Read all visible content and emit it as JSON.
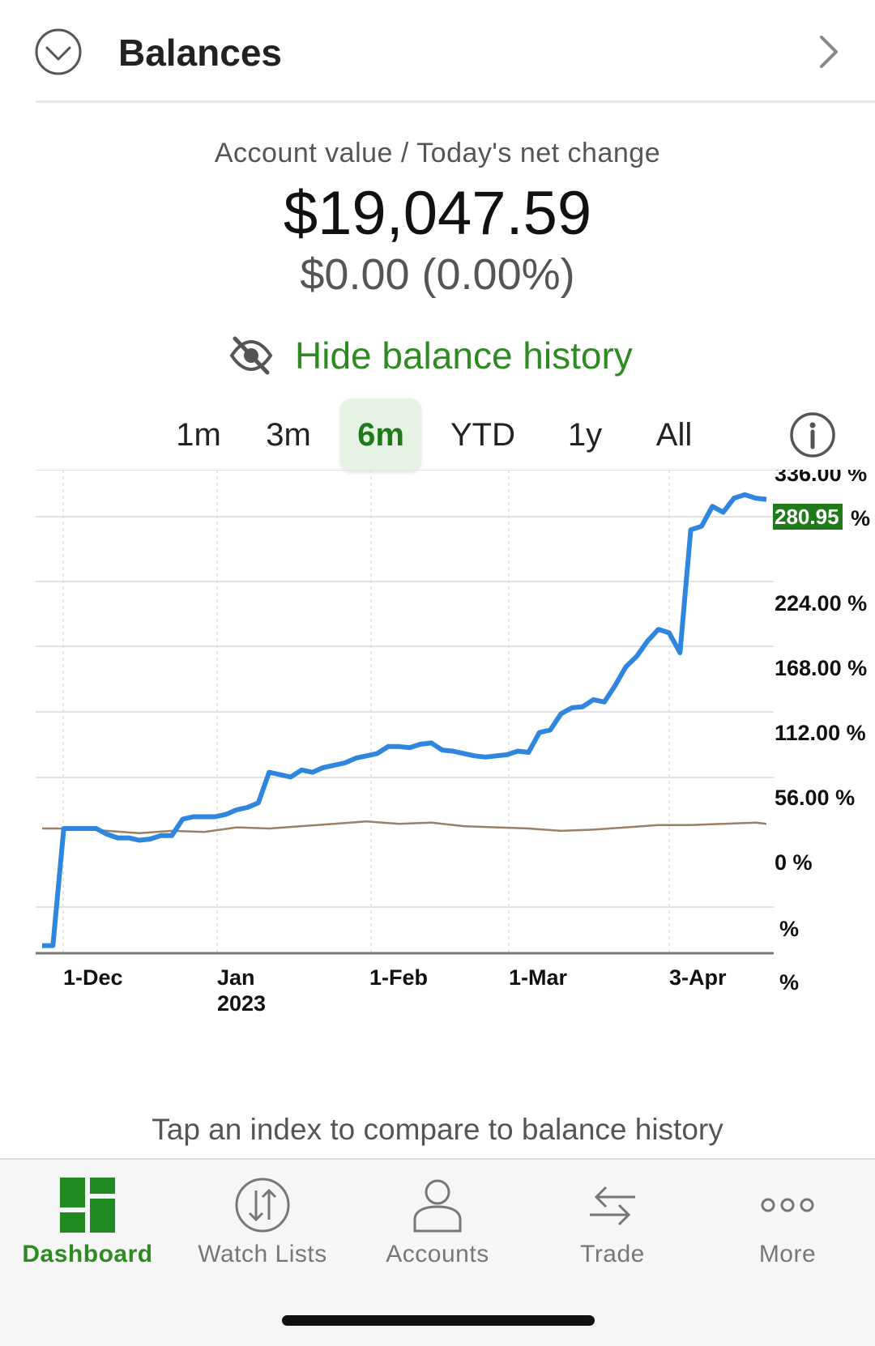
{
  "header": {
    "title": "Balances"
  },
  "account": {
    "label": "Account value / Today's net change",
    "value": "$19,047.59",
    "change": "$0.00 (0.00%)"
  },
  "history_toggle": {
    "label": "Hide balance history"
  },
  "ranges": [
    {
      "label": "1m",
      "active": false
    },
    {
      "label": "3m",
      "active": false
    },
    {
      "label": "6m",
      "active": true
    },
    {
      "label": "YTD",
      "active": false
    },
    {
      "label": "1y",
      "active": false
    },
    {
      "label": "All",
      "active": false
    }
  ],
  "colors": {
    "accent_green": "#2e8b22",
    "balance_line": "#2f86de",
    "index_line": "#9a8064",
    "highlight_badge": "#1f7a1a"
  },
  "chart_data": {
    "type": "line",
    "x_ticks": [
      "1-Dec",
      "Jan 2023",
      "1-Feb",
      "1-Mar",
      "3-Apr"
    ],
    "y_ticks": [
      "336.00 %",
      "224.00 %",
      "168.00 %",
      "112.00 %",
      "56.00 %",
      "0 %",
      "%",
      "%"
    ],
    "current_value_label": "280.95",
    "current_value_unit": "%",
    "ylim": [
      -110,
      336
    ],
    "series": [
      {
        "points": [
          [
            0,
            -100
          ],
          [
            1,
            -100
          ],
          [
            2,
            0
          ],
          [
            3,
            0
          ],
          [
            4,
            0
          ],
          [
            5,
            0
          ],
          [
            6,
            -5
          ],
          [
            7,
            -8
          ],
          [
            8,
            -8
          ],
          [
            9,
            -10
          ],
          [
            10,
            -9
          ],
          [
            11,
            -6
          ],
          [
            12,
            -6
          ],
          [
            13,
            8
          ],
          [
            14,
            10
          ],
          [
            15,
            10
          ],
          [
            16,
            10
          ],
          [
            17,
            12
          ],
          [
            18,
            16
          ],
          [
            19,
            18
          ],
          [
            20,
            22
          ],
          [
            21,
            48
          ],
          [
            22,
            46
          ],
          [
            23,
            44
          ],
          [
            24,
            50
          ],
          [
            25,
            48
          ],
          [
            26,
            52
          ],
          [
            27,
            54
          ],
          [
            28,
            56
          ],
          [
            29,
            60
          ],
          [
            30,
            62
          ],
          [
            31,
            64
          ],
          [
            32,
            70
          ],
          [
            33,
            70
          ],
          [
            34,
            69
          ],
          [
            35,
            72
          ],
          [
            36,
            73
          ],
          [
            37,
            67
          ],
          [
            38,
            66
          ],
          [
            39,
            64
          ],
          [
            40,
            62
          ],
          [
            41,
            61
          ],
          [
            42,
            62
          ],
          [
            43,
            63
          ],
          [
            44,
            66
          ],
          [
            45,
            65
          ],
          [
            46,
            82
          ],
          [
            47,
            84
          ],
          [
            48,
            98
          ],
          [
            49,
            103
          ],
          [
            50,
            104
          ],
          [
            51,
            110
          ],
          [
            52,
            108
          ],
          [
            53,
            122
          ],
          [
            54,
            138
          ],
          [
            55,
            147
          ],
          [
            56,
            160
          ],
          [
            57,
            170
          ],
          [
            58,
            167
          ],
          [
            59,
            150
          ],
          [
            60,
            255
          ],
          [
            61,
            258
          ],
          [
            62,
            275
          ],
          [
            63,
            270
          ],
          [
            64,
            282
          ],
          [
            65,
            285
          ],
          [
            66,
            282
          ],
          [
            67,
            281
          ]
        ]
      },
      {
        "points": [
          [
            0,
            0
          ],
          [
            3,
            0
          ],
          [
            6,
            -2
          ],
          [
            9,
            -4
          ],
          [
            12,
            -2
          ],
          [
            15,
            -3
          ],
          [
            18,
            1
          ],
          [
            21,
            0
          ],
          [
            24,
            2
          ],
          [
            27,
            4
          ],
          [
            30,
            6
          ],
          [
            33,
            4
          ],
          [
            36,
            5
          ],
          [
            39,
            2
          ],
          [
            42,
            1
          ],
          [
            45,
            0
          ],
          [
            48,
            -2
          ],
          [
            51,
            -1
          ],
          [
            54,
            1
          ],
          [
            57,
            3
          ],
          [
            60,
            3
          ],
          [
            63,
            4
          ],
          [
            66,
            5
          ],
          [
            67,
            4
          ]
        ]
      }
    ]
  },
  "compare_note": "Tap an index to compare to balance history",
  "tabs": [
    {
      "label": "Dashboard",
      "active": true
    },
    {
      "label": "Watch Lists",
      "active": false
    },
    {
      "label": "Accounts",
      "active": false
    },
    {
      "label": "Trade",
      "active": false
    },
    {
      "label": "More",
      "active": false
    }
  ]
}
